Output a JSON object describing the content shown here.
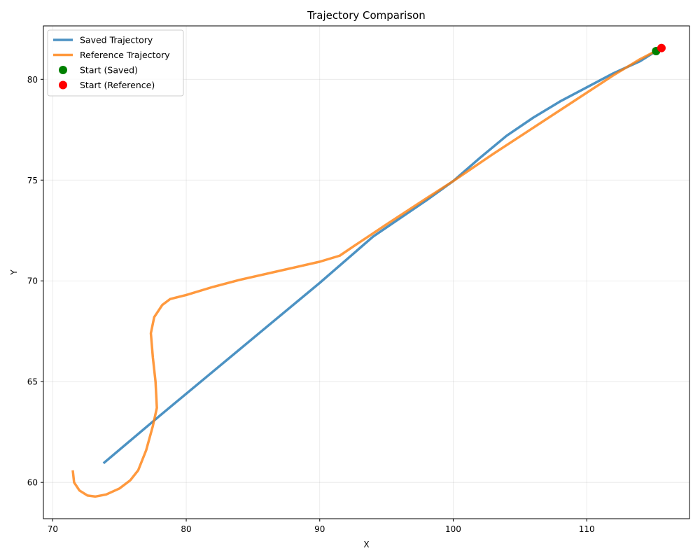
{
  "chart_data": {
    "type": "line",
    "title": "Trajectory Comparison",
    "xlabel": "X",
    "ylabel": "Y",
    "xlim": [
      69.3,
      117.7
    ],
    "ylim": [
      58.2,
      82.65
    ],
    "xticks": [
      70,
      80,
      90,
      100,
      110
    ],
    "yticks": [
      60,
      65,
      70,
      75,
      80
    ],
    "grid": true,
    "legend_position": "top-left",
    "series": [
      {
        "name": "Saved Trajectory",
        "color": "#1f77b4",
        "points": [
          [
            73.8,
            60.95
          ],
          [
            78.0,
            63.3
          ],
          [
            82.0,
            65.5
          ],
          [
            86.0,
            67.7
          ],
          [
            90.0,
            69.9
          ],
          [
            94.0,
            72.2
          ],
          [
            98.0,
            74.0
          ],
          [
            100.0,
            74.95
          ],
          [
            102.0,
            76.1
          ],
          [
            104.0,
            77.2
          ],
          [
            106.0,
            78.1
          ],
          [
            108.0,
            78.9
          ],
          [
            110.0,
            79.6
          ],
          [
            112.0,
            80.3
          ],
          [
            114.0,
            80.9
          ],
          [
            115.2,
            81.4
          ]
        ]
      },
      {
        "name": "Reference Trajectory",
        "color": "#ff7f0e",
        "points": [
          [
            71.5,
            60.6
          ],
          [
            71.6,
            60.0
          ],
          [
            72.0,
            59.6
          ],
          [
            72.6,
            59.35
          ],
          [
            73.2,
            59.3
          ],
          [
            74.0,
            59.4
          ],
          [
            75.0,
            59.7
          ],
          [
            75.8,
            60.1
          ],
          [
            76.4,
            60.6
          ],
          [
            77.0,
            61.6
          ],
          [
            77.5,
            62.8
          ],
          [
            77.8,
            63.7
          ],
          [
            77.7,
            65.0
          ],
          [
            77.5,
            66.2
          ],
          [
            77.35,
            67.4
          ],
          [
            77.6,
            68.2
          ],
          [
            78.2,
            68.8
          ],
          [
            78.8,
            69.1
          ],
          [
            80.0,
            69.3
          ],
          [
            82.0,
            69.7
          ],
          [
            84.0,
            70.05
          ],
          [
            86.0,
            70.35
          ],
          [
            88.0,
            70.65
          ],
          [
            90.0,
            70.95
          ],
          [
            91.5,
            71.25
          ],
          [
            92.5,
            71.7
          ],
          [
            95.0,
            72.8
          ],
          [
            98.0,
            74.1
          ],
          [
            100.0,
            74.95
          ],
          [
            103.0,
            76.3
          ],
          [
            106.0,
            77.6
          ],
          [
            109.0,
            78.9
          ],
          [
            112.0,
            80.2
          ],
          [
            114.0,
            81.0
          ],
          [
            115.6,
            81.55
          ]
        ]
      }
    ],
    "markers": [
      {
        "name": "Start (Saved)",
        "color": "#008000",
        "x": 115.2,
        "y": 81.4
      },
      {
        "name": "Start (Reference)",
        "color": "#ff0000",
        "x": 115.6,
        "y": 81.55
      }
    ]
  }
}
